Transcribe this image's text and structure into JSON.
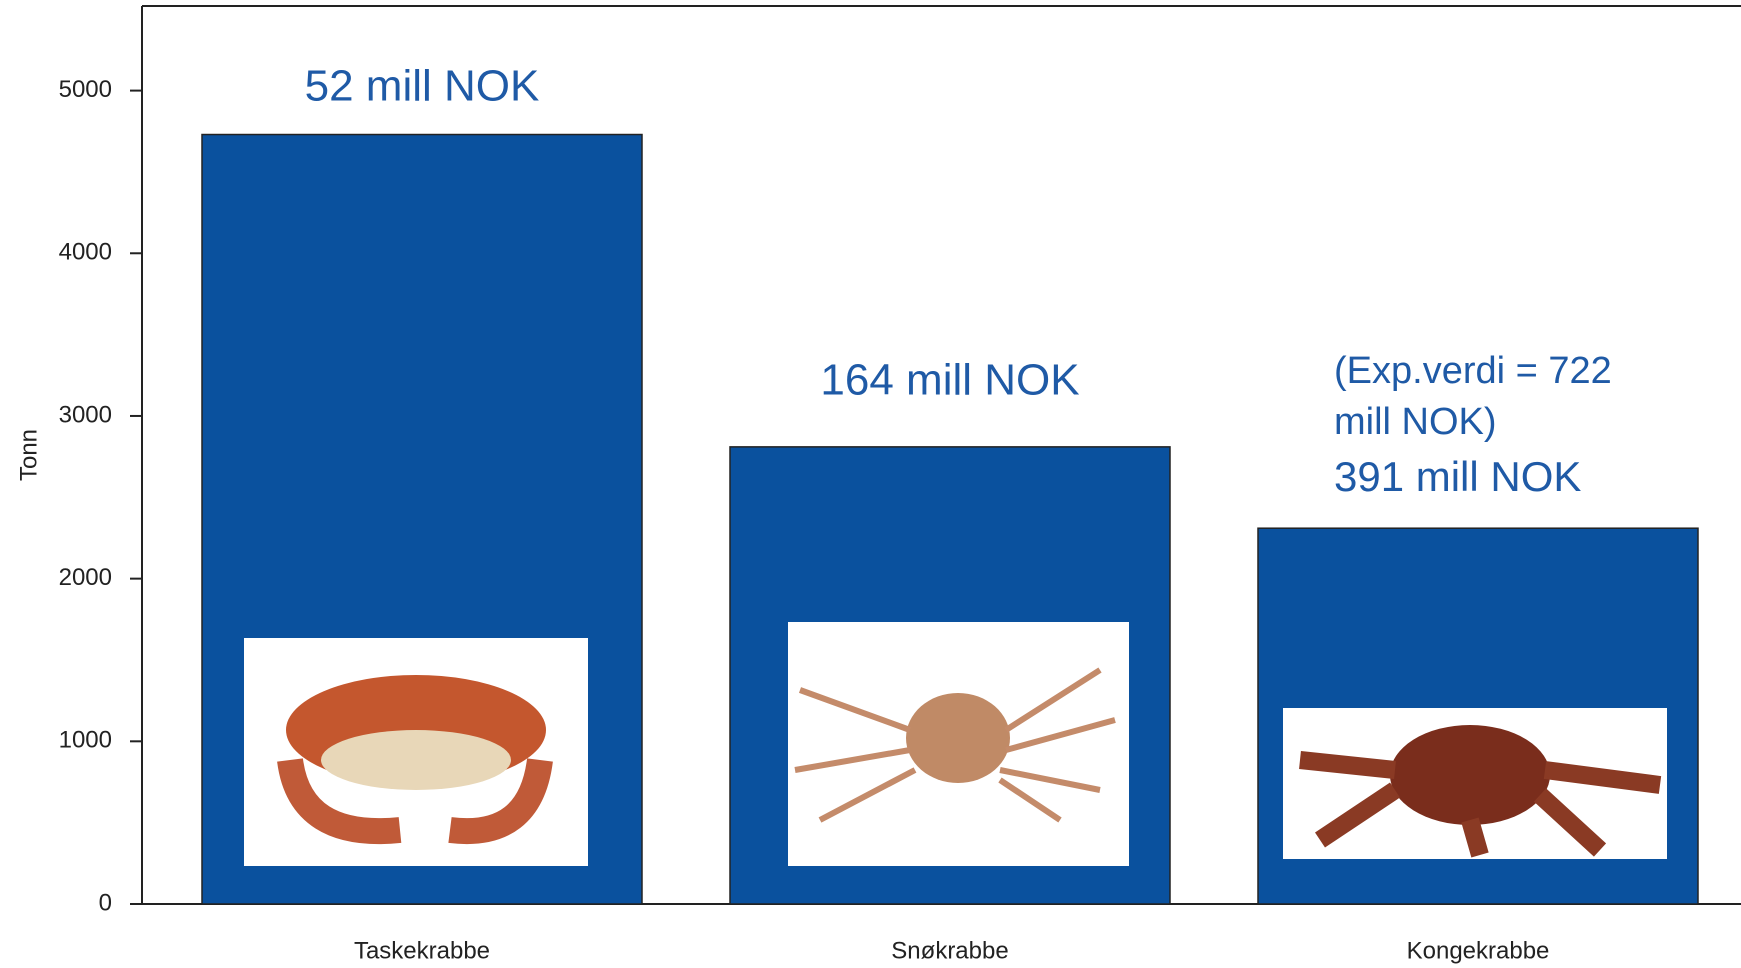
{
  "chart_data": {
    "type": "bar",
    "y_label": "Tonn",
    "categories": [
      "Taskekrabbe",
      "Snøkrabbe",
      "Kongekrabbe"
    ],
    "values": [
      4730,
      2810,
      2310
    ],
    "color": "#0a519e",
    "ylim": [
      0,
      5520
    ],
    "yticks": [
      0,
      1000,
      2000,
      3000,
      4000,
      5000
    ],
    "grid": false,
    "annotations": [
      "52 mill NOK",
      "164 mill NOK",
      "(Exp.verdi = 722",
      "mill NOK)",
      "391 mill NOK"
    ]
  }
}
